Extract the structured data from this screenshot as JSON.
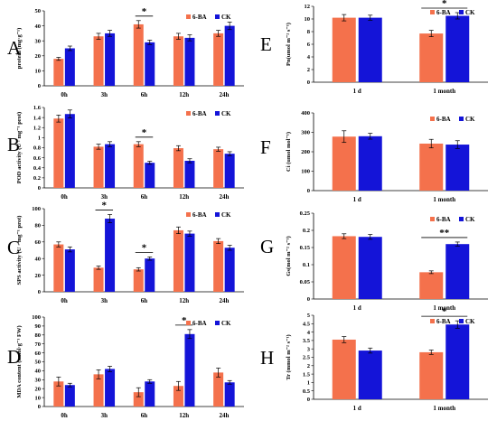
{
  "colors": {
    "six_ba": "#f4714c",
    "ck": "#1414d8"
  },
  "chart_data": [
    {
      "panel": "A",
      "type": "bar",
      "categories": [
        "0h",
        "3h",
        "6h",
        "12h",
        "24h"
      ],
      "ylabel": "protein (mg·g⁻¹)",
      "ylim": [
        0,
        50
      ],
      "yticks": [
        0,
        10,
        20,
        30,
        40,
        50
      ],
      "series": [
        {
          "name": "6-BA",
          "values": [
            18,
            33,
            41,
            33,
            35
          ],
          "errors": [
            1,
            2,
            2.5,
            2,
            2
          ]
        },
        {
          "name": "CK",
          "values": [
            25,
            35,
            29,
            32,
            40
          ],
          "errors": [
            1.5,
            2,
            1.5,
            2,
            2.5
          ]
        }
      ],
      "significance": [
        {
          "category": "6h",
          "label": "*"
        }
      ],
      "legend": "top-right"
    },
    {
      "panel": "B",
      "type": "bar",
      "categories": [
        "0h",
        "3h",
        "6h",
        "12h",
        "24h"
      ],
      "ylabel": "POD activity (U · mg⁻¹ prot)",
      "ylim": [
        0,
        1.6
      ],
      "yticks": [
        0,
        0.2,
        0.4,
        0.6,
        0.8,
        1,
        1.2,
        1.4,
        1.6
      ],
      "series": [
        {
          "name": "6-BA",
          "values": [
            1.38,
            0.82,
            0.87,
            0.79,
            0.77
          ],
          "errors": [
            0.07,
            0.05,
            0.05,
            0.05,
            0.04
          ]
        },
        {
          "name": "CK",
          "values": [
            1.47,
            0.87,
            0.5,
            0.54,
            0.68
          ],
          "errors": [
            0.08,
            0.05,
            0.03,
            0.04,
            0.04
          ]
        }
      ],
      "significance": [
        {
          "category": "6h",
          "label": "*"
        }
      ],
      "legend": "top-right"
    },
    {
      "panel": "C",
      "type": "bar",
      "categories": [
        "0h",
        "3h",
        "6h",
        "12h",
        "24h"
      ],
      "ylabel": "SPS activity (U · mg⁻¹ prot)",
      "ylim": [
        0,
        100
      ],
      "yticks": [
        0,
        20,
        40,
        60,
        80,
        100
      ],
      "series": [
        {
          "name": "6-BA",
          "values": [
            57,
            29,
            27,
            74,
            61
          ],
          "errors": [
            3,
            2,
            2,
            4,
            3
          ]
        },
        {
          "name": "CK",
          "values": [
            51,
            88,
            40,
            70,
            53
          ],
          "errors": [
            3,
            5,
            2,
            3,
            3
          ]
        }
      ],
      "significance": [
        {
          "category": "3h",
          "label": "*"
        },
        {
          "category": "6h",
          "label": "*"
        }
      ],
      "legend": "top-right"
    },
    {
      "panel": "D",
      "type": "bar",
      "categories": [
        "0h",
        "3h",
        "6h",
        "12h",
        "24h"
      ],
      "ylabel": "MDA content (nmol·g⁻¹ FW)",
      "ylim": [
        0,
        100
      ],
      "yticks": [
        0,
        10,
        20,
        30,
        40,
        50,
        60,
        70,
        80,
        90,
        100
      ],
      "series": [
        {
          "name": "6-BA",
          "values": [
            28,
            36,
            16,
            23,
            38
          ],
          "errors": [
            5,
            5,
            5,
            5,
            5
          ]
        },
        {
          "name": "CK",
          "values": [
            24,
            42,
            28,
            81,
            27
          ],
          "errors": [
            2,
            3,
            2,
            5,
            2
          ]
        }
      ],
      "significance": [
        {
          "category": "12h",
          "label": "*"
        }
      ],
      "legend": "top-right"
    },
    {
      "panel": "E",
      "type": "bar",
      "categories": [
        "1 d",
        "1 month"
      ],
      "ylabel": "Pn(umol m⁻² s⁻¹)",
      "ylim": [
        0,
        12
      ],
      "yticks": [
        0,
        2,
        4,
        6,
        8,
        10,
        12
      ],
      "series": [
        {
          "name": "6-BA",
          "values": [
            10.2,
            7.7
          ],
          "errors": [
            0.5,
            0.5
          ]
        },
        {
          "name": "CK",
          "values": [
            10.2,
            10.5
          ],
          "errors": [
            0.4,
            0.5
          ]
        }
      ],
      "significance": [
        {
          "category": "1 month",
          "label": "*"
        }
      ],
      "legend": "top-right"
    },
    {
      "panel": "F",
      "type": "bar",
      "categories": [
        "1 d",
        "1 month"
      ],
      "ylabel": "Ci (umol mol⁻¹)",
      "ylim": [
        0,
        400
      ],
      "yticks": [
        0,
        100,
        200,
        300,
        400
      ],
      "series": [
        {
          "name": "6-BA",
          "values": [
            278,
            242
          ],
          "errors": [
            30,
            22
          ]
        },
        {
          "name": "CK",
          "values": [
            280,
            237
          ],
          "errors": [
            15,
            20
          ]
        }
      ],
      "significance": [],
      "legend": "top-right"
    },
    {
      "panel": "G",
      "type": "bar",
      "categories": [
        "1 d",
        "1 month"
      ],
      "ylabel": "Gs(mol m⁻² s⁻¹)",
      "ylim": [
        0,
        0.25
      ],
      "yticks": [
        0,
        0.05,
        0.1,
        0.15,
        0.2,
        0.25
      ],
      "series": [
        {
          "name": "6-BA",
          "values": [
            0.183,
            0.078
          ],
          "errors": [
            0.007,
            0.004
          ]
        },
        {
          "name": "CK",
          "values": [
            0.181,
            0.16
          ],
          "errors": [
            0.007,
            0.006
          ]
        }
      ],
      "significance": [
        {
          "category": "1 month",
          "label": "**"
        }
      ],
      "legend": "top-right"
    },
    {
      "panel": "H",
      "type": "bar",
      "categories": [
        "1 d",
        "1 month"
      ],
      "ylabel": "Tr (mmol m⁻² s⁻¹)",
      "ylim": [
        0,
        5
      ],
      "yticks": [
        0,
        0.5,
        1,
        1.5,
        2,
        2.5,
        3,
        3.5,
        4,
        4.5,
        5
      ],
      "series": [
        {
          "name": "6-BA",
          "values": [
            3.55,
            2.8
          ],
          "errors": [
            0.18,
            0.13
          ]
        },
        {
          "name": "CK",
          "values": [
            2.9,
            4.45
          ],
          "errors": [
            0.15,
            0.22
          ]
        }
      ],
      "significance": [
        {
          "category": "1 month",
          "label": "*"
        }
      ],
      "legend": "top-right"
    }
  ]
}
